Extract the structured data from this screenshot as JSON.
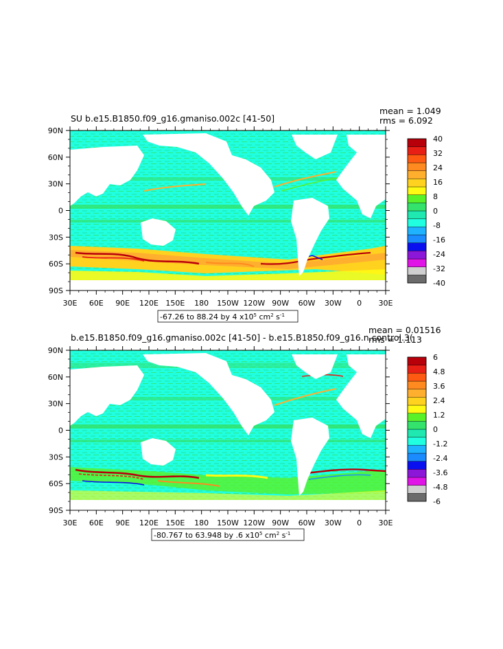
{
  "colors": {
    "levels_palette": [
      "#6b6b6b",
      "#cfcfcf",
      "#e014e6",
      "#8c17d9",
      "#0a0ff0",
      "#1a8cff",
      "#1fb2ff",
      "#20ffe0",
      "#1fe8b0",
      "#33e36b",
      "#59f228",
      "#fffa14",
      "#ffd21f",
      "#ffaf2e",
      "#ff8a1f",
      "#ff5a12",
      "#e81f14",
      "#b8000a"
    ],
    "land": "#ffffff",
    "frame": "#000000"
  },
  "chart_data": [
    {
      "type": "heatmap",
      "title": "SU b.e15.B1850.f09_g16.gmaniso.002c [41-50]",
      "stats": {
        "mean": "mean = 1.049",
        "rms": "rms = 6.092"
      },
      "xticks": [
        "30E",
        "60E",
        "90E",
        "120E",
        "150E",
        "180",
        "150W",
        "120W",
        "90W",
        "60W",
        "30W",
        "0",
        "30E"
      ],
      "yticks": [
        "90N",
        "60N",
        "30N",
        "0",
        "30S",
        "60S",
        "90S"
      ],
      "colorbar_labels": [
        "40",
        "32",
        "24",
        "16",
        "8",
        "0",
        "-8",
        "-16",
        "-24",
        "-32",
        "-40"
      ],
      "range_note": "-67.26 to 88.24 by 4 x10",
      "range_exp": "5",
      "range_unit": " cm",
      "range_exp2": "2",
      "range_unit2": " s",
      "range_exp3": "-1",
      "xlim": [
        30,
        390
      ],
      "ylim": [
        -90,
        90
      ],
      "zlim": [
        -40,
        40
      ]
    },
    {
      "type": "heatmap",
      "title": "b.e15.B1850.f09_g16.gmaniso.002c [41-50] - b.e15.B1850.f09_g16.n.control.3(",
      "stats": {
        "mean": "mean = 0.01516",
        "rms": "rms = 1.113"
      },
      "xticks": [
        "30E",
        "60E",
        "90E",
        "120E",
        "150E",
        "180",
        "150W",
        "120W",
        "90W",
        "60W",
        "30W",
        "0",
        "30E"
      ],
      "yticks": [
        "90N",
        "60N",
        "30N",
        "0",
        "30S",
        "60S",
        "90S"
      ],
      "colorbar_labels": [
        "6",
        "4.8",
        "3.6",
        "2.4",
        "1.2",
        "0",
        "-1.2",
        "-2.4",
        "-3.6",
        "-4.8",
        "-6"
      ],
      "range_note": "-80.767 to 63.948 by .6 x10",
      "range_exp": "5",
      "range_unit": " cm",
      "range_exp2": "2",
      "range_unit2": " s",
      "range_exp3": "-1",
      "xlim": [
        30,
        390
      ],
      "ylim": [
        -90,
        90
      ],
      "zlim": [
        -6,
        6
      ]
    }
  ]
}
